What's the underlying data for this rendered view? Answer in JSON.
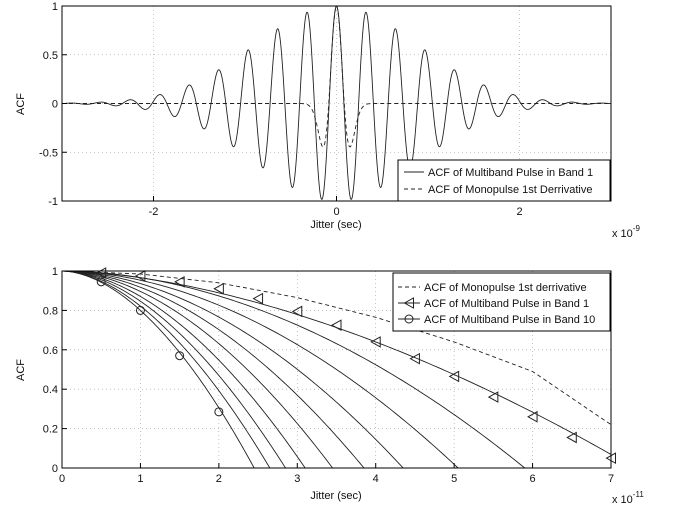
{
  "chart_data": [
    {
      "type": "line",
      "xlabel": "Jitter (sec)",
      "ylabel": "ACF",
      "xlim": [
        -3,
        3
      ],
      "ylim": [
        -1,
        1
      ],
      "x_exponent_label": "x 10",
      "x_exponent": "-9",
      "xticks": [
        -2,
        0,
        2
      ],
      "xtick_labels": [
        "-2",
        "0",
        "2"
      ],
      "yticks": [
        -1,
        -0.5,
        0,
        0.5,
        1
      ],
      "ytick_labels": [
        "-1",
        "-0.5",
        "0",
        "0.5",
        "1"
      ],
      "grid": true,
      "legend_position": "bottom-right",
      "series": [
        {
          "name": "ACF of Multiband Pulse in Band 1",
          "style": "solid",
          "model": "cos(2*pi*3.1*x) * exp(-(x/1.25)^2)",
          "peak_values": [
            1.0,
            0.96,
            0.91,
            0.85,
            0.77,
            0.69,
            0.6,
            0.5,
            0.41,
            0.33,
            0.25,
            0.18,
            0.11,
            0.06,
            0.03
          ]
        },
        {
          "name": "ACF of Monopulse 1st Derrivative",
          "style": "dashed",
          "model": "(1 - 2*(x/0.12)^2) * exp(-(x/0.12)^2)",
          "values_at": {
            "x": [
              -0.4,
              -0.2,
              -0.1,
              0,
              0.1,
              0.2,
              0.4
            ],
            "y": [
              0.0,
              -0.3,
              0.2,
              1.0,
              0.2,
              -0.3,
              0.0
            ]
          }
        }
      ]
    },
    {
      "type": "line",
      "xlabel": "Jitter (sec)",
      "ylabel": "ACF",
      "xlim": [
        0,
        7
      ],
      "ylim": [
        0,
        1
      ],
      "x_exponent_label": "x 10",
      "x_exponent": "-11",
      "xticks": [
        0,
        1,
        2,
        3,
        4,
        5,
        6,
        7
      ],
      "xtick_labels": [
        "0",
        "1",
        "2",
        "3",
        "4",
        "5",
        "6",
        "7"
      ],
      "yticks": [
        0,
        0.2,
        0.4,
        0.6,
        0.8,
        1
      ],
      "ytick_labels": [
        "0",
        "0.2",
        "0.4",
        "0.6",
        "0.8",
        "1"
      ],
      "grid": true,
      "legend_position": "top-right",
      "series": [
        {
          "name": "ACF of Monopulse 1st derrivative",
          "style": "dashed",
          "x": [
            0,
            1,
            2,
            3,
            4,
            5,
            6,
            7
          ],
          "y": [
            1.0,
            0.985,
            0.94,
            0.865,
            0.765,
            0.64,
            0.49,
            0.22
          ]
        },
        {
          "name": "ACF of Multiband Pulse in Band 1",
          "style": "solid",
          "marker": "triangle-left",
          "x": [
            0.5,
            1,
            1.5,
            2,
            2.5,
            3,
            3.5,
            4,
            4.5,
            5,
            5.5,
            6,
            6.5,
            7
          ],
          "y": [
            0.99,
            0.975,
            0.945,
            0.91,
            0.86,
            0.795,
            0.725,
            0.64,
            0.555,
            0.465,
            0.36,
            0.26,
            0.155,
            0.05
          ]
        },
        {
          "name": "ACF of Multiband Pulse in Band 10",
          "style": "solid",
          "marker": "circle",
          "x": [
            0,
            0.5,
            1,
            1.5,
            2,
            2.45
          ],
          "y": [
            1.0,
            0.945,
            0.8,
            0.57,
            0.285,
            0.0
          ]
        }
      ],
      "intermediate_band_zero_crossings": [
        2.45,
        2.65,
        2.85,
        3.1,
        3.45,
        3.85,
        4.35,
        5.05,
        5.9,
        7.3
      ]
    }
  ]
}
